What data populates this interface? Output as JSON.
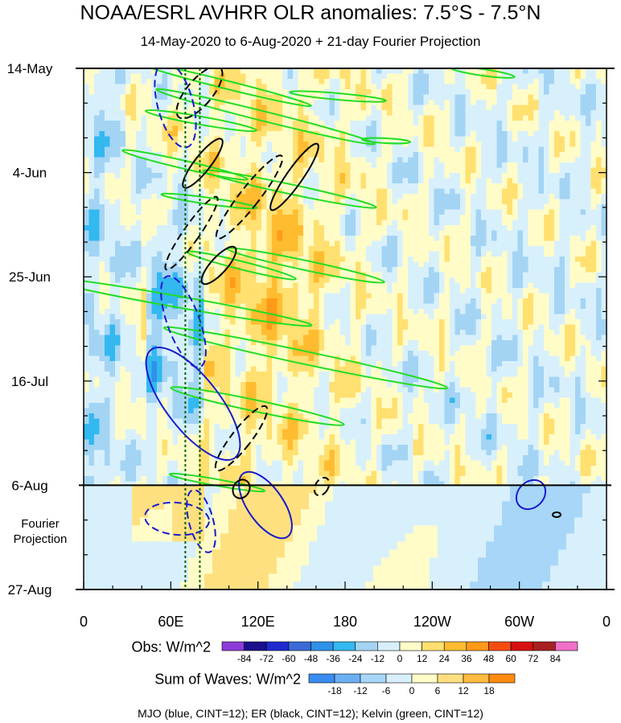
{
  "title": "NOAA/ESRL AVHRR OLR anomalies: 7.5°S - 7.5°N",
  "subtitle": "14-May-2020 to 6-Aug-2020 + 21-day Fourier Projection",
  "chart_data": {
    "type": "heatmap",
    "x_axis": {
      "ticks": [
        "0",
        "60E",
        "120E",
        "180",
        "120W",
        "60W",
        "0"
      ],
      "range_deg_east": [
        0,
        360
      ]
    },
    "y_axis": {
      "ticks": [
        "14-May",
        "4-Jun",
        "25-Jun",
        "16-Jul",
        "6-Aug",
        "27-Aug"
      ],
      "range": [
        "2020-05-14",
        "2020-08-27"
      ],
      "observation_end": "2020-08-06",
      "projection_label": [
        "Fourier",
        "Projection"
      ]
    },
    "colorbars": [
      {
        "title": "Obs: W/m^2",
        "levels": [
          "-84",
          "-72",
          "-60",
          "-48",
          "-36",
          "-24",
          "-12",
          "0",
          "12",
          "24",
          "36",
          "48",
          "60",
          "72",
          "84"
        ],
        "colors": [
          "#8c3cd8",
          "#1a0f8c",
          "#1f2bd0",
          "#3b6ad8",
          "#2f91e8",
          "#33b8f0",
          "#a4d4f4",
          "#d8f0fc",
          "#fffcc8",
          "#ffe070",
          "#ffbc30",
          "#ff9a18",
          "#f84c10",
          "#d81010",
          "#a82020",
          "#f070c8"
        ]
      },
      {
        "title": "Sum of Waves: W/m^2",
        "levels": [
          "-18",
          "-12",
          "-6",
          "0",
          "6",
          "12",
          "18"
        ],
        "colors": [
          "#3a8cf0",
          "#6cb0f4",
          "#a8d6f8",
          "#d8f0fc",
          "#fffcc8",
          "#ffe080",
          "#ffbc40",
          "#ff8c10"
        ]
      }
    ],
    "contours": [
      {
        "name": "MJO",
        "color": "#1a1acc"
      },
      {
        "name": "ER",
        "color": "#000000"
      },
      {
        "name": "Kelvin",
        "color": "#22dd22"
      }
    ],
    "reference_lines_deg_east": [
      70,
      80
    ],
    "reference_line_color": "#006400"
  },
  "footer": "MJO (blue, CINT=12); ER (black, CINT=12); Kelvin (green, CINT=12)"
}
